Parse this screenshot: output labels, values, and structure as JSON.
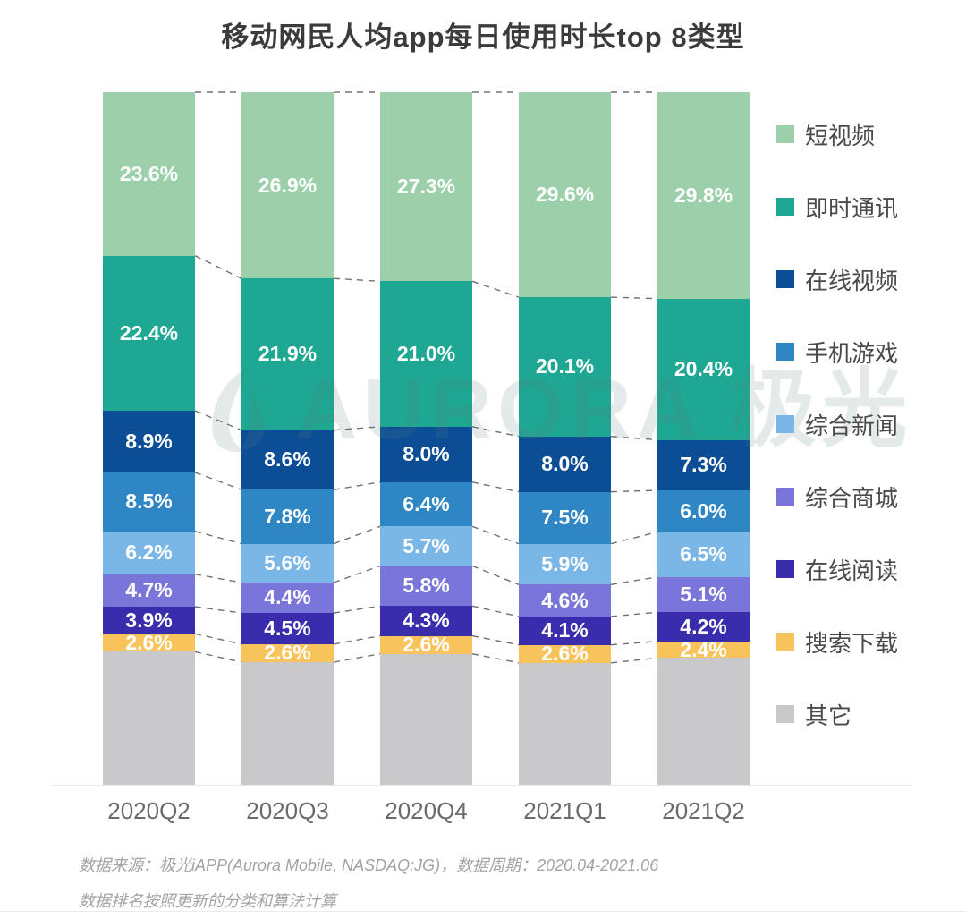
{
  "title": "移动网民人均app每日使用时长top 8类型",
  "chart_data": {
    "type": "bar",
    "stacked": true,
    "unit": "percent_of_daily_usage_time",
    "value_suffix": "%",
    "ylim": [
      0,
      100
    ],
    "grid": false,
    "legend_position": "right",
    "categories": [
      "2020Q2",
      "2020Q3",
      "2020Q4",
      "2021Q1",
      "2021Q2"
    ],
    "series": [
      {
        "key": "short-video",
        "name": "短视频",
        "color": "#9bd0ab",
        "labeled": true,
        "values": [
          23.6,
          26.9,
          27.3,
          29.6,
          29.8
        ]
      },
      {
        "key": "instant-messaging",
        "name": "即时通讯",
        "color": "#1ea893",
        "labeled": true,
        "values": [
          22.4,
          21.9,
          21.0,
          20.1,
          20.4
        ]
      },
      {
        "key": "online-video",
        "name": "在线视频",
        "color": "#0b4e96",
        "labeled": true,
        "values": [
          8.9,
          8.6,
          8.0,
          8.0,
          7.3
        ]
      },
      {
        "key": "mobile-games",
        "name": "手机游戏",
        "color": "#2f86c4",
        "labeled": true,
        "values": [
          8.5,
          7.8,
          6.4,
          7.5,
          6.0
        ]
      },
      {
        "key": "news",
        "name": "综合新闻",
        "color": "#7ab6e6",
        "labeled": true,
        "values": [
          6.2,
          5.6,
          5.7,
          5.9,
          6.5
        ]
      },
      {
        "key": "shopping-mall",
        "name": "综合商城",
        "color": "#7a75d9",
        "labeled": true,
        "values": [
          4.7,
          4.4,
          5.8,
          4.6,
          5.1
        ]
      },
      {
        "key": "online-reading",
        "name": "在线阅读",
        "color": "#3a2dad",
        "labeled": true,
        "values": [
          3.9,
          4.5,
          4.3,
          4.1,
          4.2
        ]
      },
      {
        "key": "search-download",
        "name": "搜索下载",
        "color": "#f9c35b",
        "labeled": true,
        "values": [
          2.6,
          2.6,
          2.6,
          2.6,
          2.4
        ]
      },
      {
        "key": "others",
        "name": "其它",
        "color": "#c9c9cc",
        "labeled": false,
        "values": [
          19.2,
          17.7,
          18.9,
          17.6,
          18.3
        ]
      }
    ],
    "connector_lines": "dashed lines join segment boundaries of adjacent bars"
  },
  "watermark": "AURORA 极光",
  "footer": {
    "line1": "数据来源：极光iAPP(Aurora Mobile, NASDAQ:JG)，数据周期：2020.04-2021.06",
    "line2": "数据排名按照更新的分类和算法计算"
  },
  "colors": {
    "title_text": "#3b3b3b",
    "axis_text": "#6a6a6a",
    "legend_text": "#4a4a4a",
    "segment_label_text": "#ffffff",
    "footer_text": "#a3a3a3",
    "connector_line": "#4d4d4d"
  }
}
